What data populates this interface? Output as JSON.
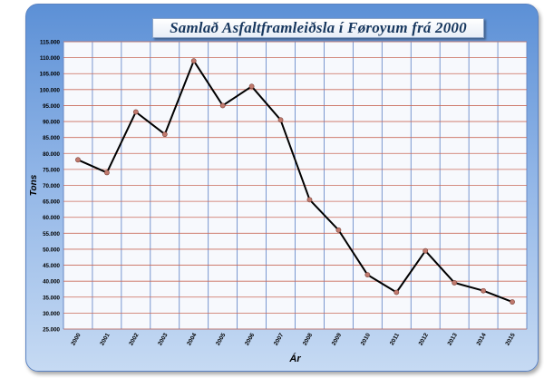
{
  "chart_data": {
    "type": "line",
    "title": "Samlað Asfaltframleiðsla í Føroyum frá 2000",
    "xlabel": "Ár",
    "ylabel": "Tons",
    "categories": [
      "2000",
      "2001",
      "2002",
      "2003",
      "2004",
      "2005",
      "2006",
      "2007",
      "2008",
      "2009",
      "2010",
      "2011",
      "2012",
      "2013",
      "2014",
      "2015"
    ],
    "values": [
      78000,
      74000,
      93000,
      86000,
      109000,
      95000,
      101000,
      90500,
      65500,
      56000,
      42000,
      36500,
      49500,
      39500,
      37000,
      33500
    ],
    "ylim": [
      25000,
      115000
    ],
    "ytick_step": 5000,
    "ytick_labels": [
      "25.000",
      "30.000",
      "35.000",
      "40.000",
      "45.000",
      "50.000",
      "55.000",
      "60.000",
      "65.000",
      "70.000",
      "75.000",
      "80.000",
      "85.000",
      "90.000",
      "95.000",
      "100.000",
      "105.000",
      "110.000",
      "115.000"
    ],
    "grid": true,
    "colors": {
      "line": "#000000",
      "marker": "#c07a6e",
      "grid_h": "#c96a5a",
      "grid_v": "#5b7fc4",
      "plot_bg": "#f7f9fd"
    }
  }
}
